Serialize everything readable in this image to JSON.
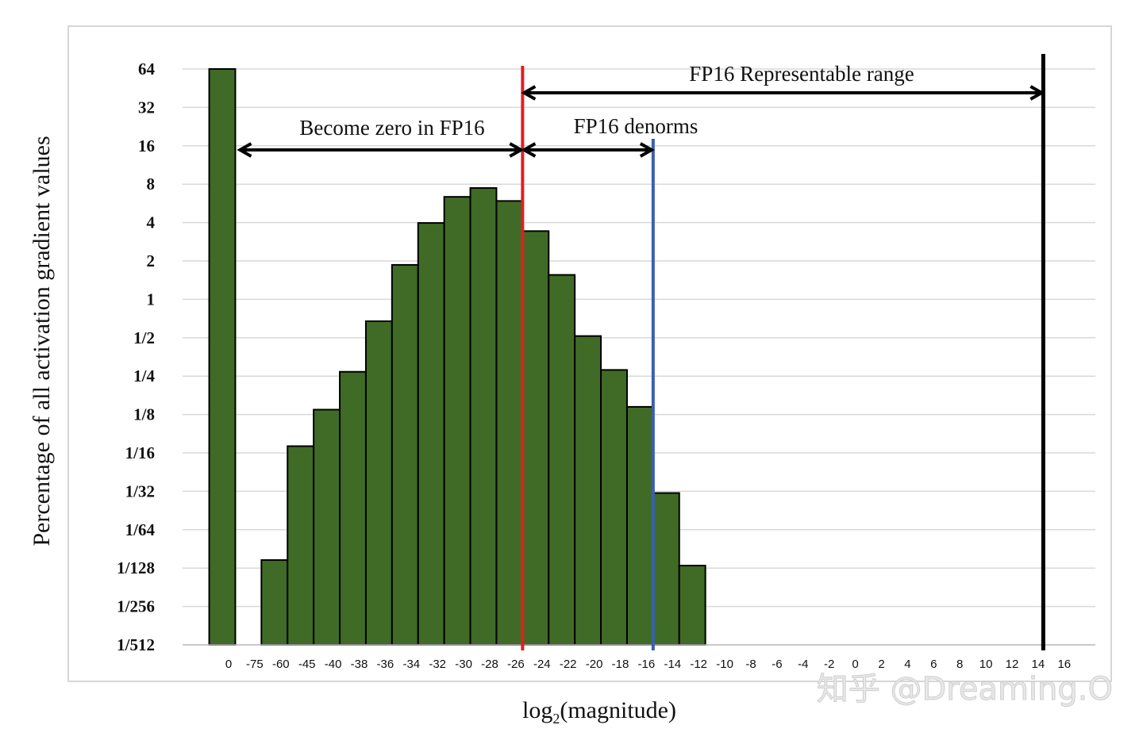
{
  "chart_data": {
    "type": "bar",
    "ylabel": "Percentage of all activation gradient values",
    "xlabel_main": "log",
    "xlabel_sub": "2",
    "xlabel_tail": "(magnitude)",
    "y_scale": "log2",
    "ytick_labels": [
      "1/512",
      "1/256",
      "1/128",
      "1/64",
      "1/32",
      "1/16",
      "1/8",
      "1/4",
      "1/2",
      "1",
      "2",
      "4",
      "8",
      "16",
      "32",
      "64"
    ],
    "ytick_values": [
      0.001953125,
      0.00390625,
      0.0078125,
      0.015625,
      0.03125,
      0.0625,
      0.125,
      0.25,
      0.5,
      1,
      2,
      4,
      8,
      16,
      32,
      64
    ],
    "xtick_labels": [
      "0",
      "-75",
      "-60",
      "-45",
      "-40",
      "-38",
      "-36",
      "-34",
      "-32",
      "-30",
      "-28",
      "-26",
      "-24",
      "-22",
      "-20",
      "-18",
      "-16",
      "-14",
      "-12",
      "-10",
      "-8",
      "-6",
      "-4",
      "-2",
      "0",
      "2",
      "4",
      "6",
      "8",
      "10",
      "12",
      "14",
      "16"
    ],
    "bins": [
      {
        "lower": "0",
        "value": 64
      },
      {
        "lower": "-75",
        "value": 0
      },
      {
        "lower": "-60",
        "value": 0.00903
      },
      {
        "lower": "-45",
        "value": 0.0706
      },
      {
        "lower": "-40",
        "value": 0.1365
      },
      {
        "lower": "-38",
        "value": 0.2704
      },
      {
        "lower": "-36",
        "value": 0.6736
      },
      {
        "lower": "-34",
        "value": 1.8636
      },
      {
        "lower": "-32",
        "value": 3.9724
      },
      {
        "lower": "-30",
        "value": 6.3643
      },
      {
        "lower": "-28",
        "value": 7.4643
      },
      {
        "lower": "-26",
        "value": 5.9081
      },
      {
        "lower": "-24",
        "value": 3.4296
      },
      {
        "lower": "-22",
        "value": 1.5548
      },
      {
        "lower": "-20",
        "value": 0.5156
      },
      {
        "lower": "-18",
        "value": 0.2796
      },
      {
        "lower": "-16",
        "value": 0.1436
      },
      {
        "lower": "-14",
        "value": 0.0303
      },
      {
        "lower": "-12",
        "value": 0.00817
      }
    ],
    "bar_color": "#3f6b26",
    "vertical_lines": [
      {
        "name": "fp16-denorm-min",
        "at": "-24",
        "color": "#e02020"
      },
      {
        "name": "fp16-normal-min",
        "at": "-14",
        "color": "#3a5fb0"
      },
      {
        "name": "fp16-max",
        "at": "16",
        "color": "#000000"
      }
    ],
    "annotations": {
      "zero": "Become zero in FP16",
      "denorms": "FP16 denorms",
      "range": "FP16 Representable range"
    }
  },
  "watermark": "知乎 @Dreaming.O"
}
